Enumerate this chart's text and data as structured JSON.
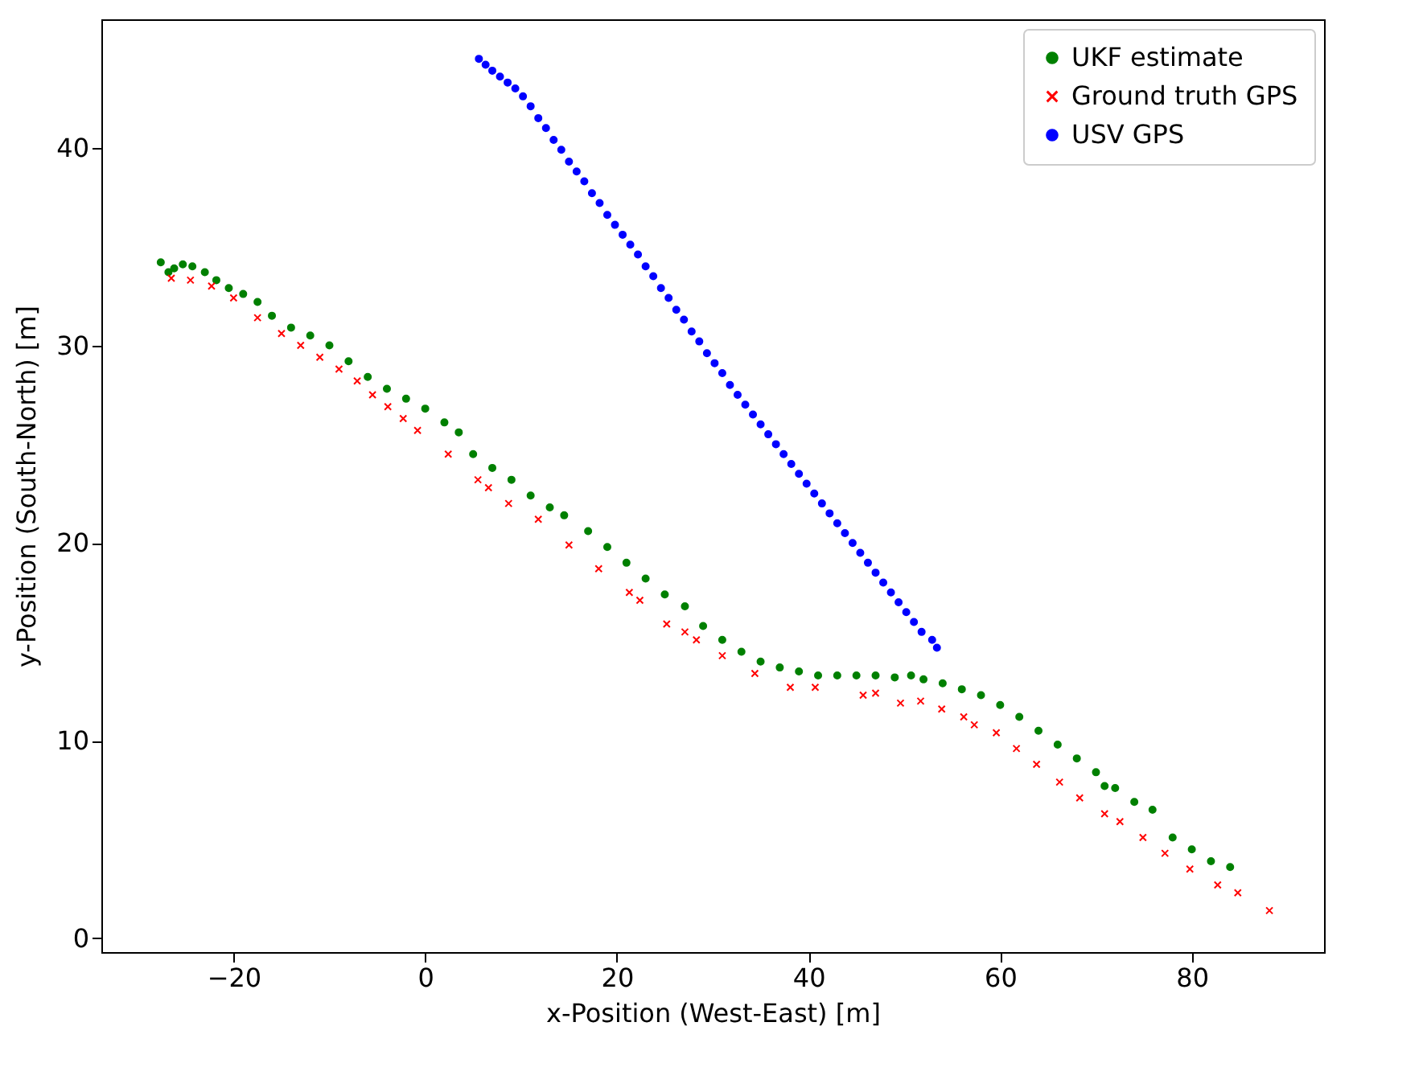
{
  "chart_data": {
    "type": "scatter",
    "xlabel": "x-Position (West-East) [m]",
    "ylabel": "y-Position (South-North) [m]",
    "xlim": [
      -33.8,
      93.8
    ],
    "ylim": [
      -0.7,
      46.5
    ],
    "xticks": [
      -20,
      0,
      20,
      40,
      60,
      80
    ],
    "yticks": [
      0,
      10,
      20,
      30,
      40
    ],
    "grid": false,
    "legend": "top right",
    "series": [
      {
        "name": "UKF estimate",
        "color": "#008000",
        "marker": "circle",
        "x": [
          -27.6,
          -26.8,
          -26.2,
          -25.3,
          -24.3,
          -23.0,
          -21.8,
          -20.5,
          -19.0,
          -17.5,
          -16.0,
          -14.0,
          -12.0,
          -10.0,
          -8.0,
          -6.0,
          -4.0,
          -2.0,
          0.0,
          2.0,
          3.5,
          5.0,
          7.0,
          9.0,
          11.0,
          13.0,
          14.5,
          17.0,
          19.0,
          21.0,
          23.0,
          25.0,
          27.1,
          29.0,
          31.0,
          33.0,
          35.0,
          37.0,
          39.0,
          41.0,
          43.0,
          45.0,
          47.0,
          49.0,
          50.7,
          52.0,
          54.0,
          56.0,
          58.0,
          60.0,
          62.0,
          64.0,
          66.0,
          68.0,
          70.0,
          70.9,
          72.0,
          74.0,
          75.9,
          78.0,
          80.0,
          82.0,
          84.0
        ],
        "values": [
          34.2,
          33.7,
          33.9,
          34.1,
          34.0,
          33.7,
          33.3,
          32.9,
          32.6,
          32.2,
          31.5,
          30.9,
          30.5,
          30.0,
          29.2,
          28.4,
          27.8,
          27.3,
          26.8,
          26.1,
          25.6,
          24.5,
          23.8,
          23.2,
          22.4,
          21.8,
          21.4,
          20.6,
          19.8,
          19.0,
          18.2,
          17.4,
          16.8,
          15.8,
          15.1,
          14.5,
          14.0,
          13.7,
          13.5,
          13.3,
          13.3,
          13.3,
          13.3,
          13.2,
          13.3,
          13.1,
          12.9,
          12.6,
          12.3,
          11.8,
          11.2,
          10.5,
          9.8,
          9.1,
          8.4,
          7.7,
          7.6,
          6.9,
          6.5,
          5.1,
          4.5,
          3.9,
          3.6
        ]
      },
      {
        "name": "Ground truth GPS",
        "color": "#ff0000",
        "marker": "cross",
        "x": [
          -26.5,
          -24.5,
          -22.3,
          -20.0,
          -17.5,
          -15.0,
          -13.0,
          -11.0,
          -9.0,
          -7.1,
          -5.5,
          -3.9,
          -2.3,
          -0.8,
          2.4,
          5.5,
          6.6,
          8.7,
          11.8,
          15.0,
          18.1,
          21.3,
          22.4,
          25.2,
          27.1,
          28.3,
          31.0,
          34.4,
          38.1,
          40.7,
          45.7,
          47.0,
          49.6,
          51.7,
          53.9,
          56.2,
          57.3,
          59.6,
          61.7,
          63.8,
          66.2,
          68.3,
          70.9,
          72.5,
          74.9,
          77.2,
          79.8,
          82.7,
          84.8,
          88.1
        ],
        "values": [
          33.4,
          33.3,
          33.0,
          32.4,
          31.4,
          30.6,
          30.0,
          29.4,
          28.8,
          28.2,
          27.5,
          26.9,
          26.3,
          25.7,
          24.5,
          23.2,
          22.8,
          22.0,
          21.2,
          19.9,
          18.7,
          17.5,
          17.1,
          15.9,
          15.5,
          15.1,
          14.3,
          13.4,
          12.7,
          12.7,
          12.3,
          12.4,
          11.9,
          12.0,
          11.6,
          11.2,
          10.8,
          10.4,
          9.6,
          8.8,
          7.9,
          7.1,
          6.3,
          5.9,
          5.1,
          4.3,
          3.5,
          2.7,
          2.3,
          1.4
        ]
      },
      {
        "name": "USV GPS",
        "color": "#0000ff",
        "marker": "circle",
        "x": [
          5.6,
          6.3,
          7.0,
          7.8,
          8.6,
          9.4,
          10.2,
          11.0,
          11.8,
          12.6,
          13.4,
          14.2,
          15.0,
          15.8,
          16.6,
          17.4,
          18.2,
          19.0,
          19.8,
          20.6,
          21.4,
          22.2,
          23.0,
          23.8,
          24.6,
          25.4,
          26.2,
          27.0,
          27.8,
          28.6,
          29.4,
          30.2,
          31.0,
          31.8,
          32.6,
          33.4,
          34.2,
          35.0,
          35.8,
          36.6,
          37.4,
          38.2,
          39.0,
          39.8,
          40.6,
          41.4,
          42.2,
          43.0,
          43.8,
          44.6,
          45.4,
          46.2,
          47.0,
          47.8,
          48.6,
          49.4,
          50.2,
          51.0,
          51.8,
          52.9,
          53.4
        ],
        "values": [
          44.5,
          44.2,
          43.9,
          43.6,
          43.3,
          43.0,
          42.6,
          42.1,
          41.5,
          41.0,
          40.4,
          39.9,
          39.3,
          38.8,
          38.3,
          37.7,
          37.2,
          36.6,
          36.1,
          35.6,
          35.1,
          34.6,
          34.0,
          33.5,
          32.9,
          32.4,
          31.8,
          31.3,
          30.7,
          30.2,
          29.6,
          29.1,
          28.6,
          28.0,
          27.5,
          27.0,
          26.5,
          26.0,
          25.5,
          25.0,
          24.5,
          24.0,
          23.5,
          23.0,
          22.5,
          22.0,
          21.5,
          21.0,
          20.5,
          20.0,
          19.5,
          19.0,
          18.5,
          18.0,
          17.5,
          17.0,
          16.5,
          16.0,
          15.5,
          15.1,
          14.7
        ]
      }
    ]
  }
}
